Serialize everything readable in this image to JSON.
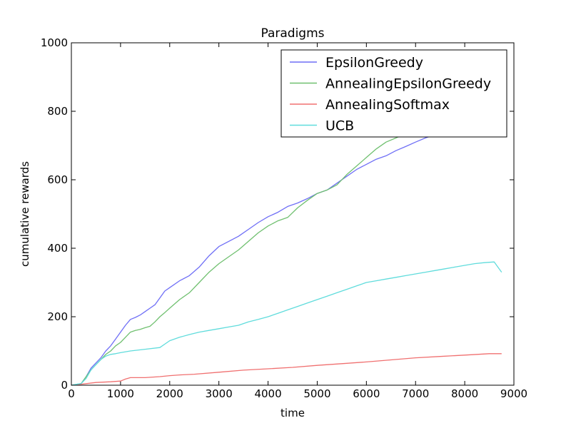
{
  "chart_data": {
    "type": "line",
    "title": "Paradigms",
    "xlabel": "time",
    "ylabel": "cumulative rewards",
    "xlim": [
      0,
      9000
    ],
    "ylim": [
      0,
      1000
    ],
    "xticks": [
      0,
      1000,
      2000,
      3000,
      4000,
      5000,
      6000,
      7000,
      8000,
      9000
    ],
    "yticks": [
      0,
      200,
      400,
      600,
      800,
      1000
    ],
    "grid": false,
    "legend_position": "top-right",
    "series": [
      {
        "name": "EpsilonGreedy",
        "color": "#6f6ff6",
        "x": [
          0,
          200,
          300,
          400,
          500,
          600,
          700,
          800,
          900,
          1000,
          1100,
          1200,
          1300,
          1400,
          1500,
          1600,
          1700,
          1800,
          1900,
          2000,
          2200,
          2400,
          2600,
          2800,
          3000,
          3200,
          3400,
          3600,
          3800,
          4000,
          4200,
          4400,
          4600,
          4800,
          5000,
          5200,
          5400,
          5600,
          5800,
          6000,
          6200,
          6400,
          6600,
          6800,
          7000,
          7200,
          7400,
          7600
        ],
        "y": [
          0,
          5,
          25,
          50,
          65,
          80,
          100,
          115,
          135,
          155,
          175,
          192,
          198,
          205,
          215,
          225,
          235,
          255,
          275,
          285,
          305,
          320,
          345,
          378,
          405,
          420,
          435,
          455,
          475,
          492,
          505,
          522,
          532,
          545,
          560,
          570,
          590,
          610,
          630,
          645,
          660,
          670,
          685,
          697,
          710,
          722,
          732,
          738
        ]
      },
      {
        "name": "AnnealingEpsilonGreedy",
        "color": "#70c070",
        "x": [
          0,
          200,
          300,
          400,
          500,
          600,
          700,
          800,
          900,
          1000,
          1100,
          1200,
          1300,
          1400,
          1500,
          1600,
          1700,
          1800,
          1900,
          2000,
          2200,
          2400,
          2600,
          2800,
          3000,
          3200,
          3400,
          3600,
          3800,
          4000,
          4200,
          4400,
          4600,
          4800,
          5000,
          5200,
          5400,
          5600,
          5800,
          6000,
          6200,
          6400,
          6600,
          6800
        ],
        "y": [
          0,
          5,
          25,
          45,
          60,
          75,
          90,
          100,
          115,
          125,
          140,
          155,
          160,
          163,
          168,
          172,
          185,
          200,
          212,
          225,
          250,
          270,
          300,
          330,
          355,
          375,
          395,
          420,
          445,
          465,
          480,
          490,
          518,
          540,
          560,
          570,
          585,
          615,
          640,
          665,
          690,
          710,
          722,
          735
        ]
      },
      {
        "name": "AnnealingSoftmax",
        "color": "#f07070",
        "x": [
          0,
          200,
          500,
          800,
          1000,
          1100,
          1200,
          1500,
          1800,
          2000,
          2200,
          2500,
          3000,
          3500,
          4000,
          4500,
          5000,
          5500,
          6000,
          6500,
          7000,
          7500,
          8000,
          8500,
          8750
        ],
        "y": [
          0,
          3,
          8,
          10,
          12,
          18,
          22,
          22,
          25,
          28,
          30,
          32,
          38,
          44,
          48,
          52,
          58,
          63,
          68,
          74,
          80,
          84,
          88,
          92,
          92
        ]
      },
      {
        "name": "UCB",
        "color": "#60dcdc",
        "x": [
          0,
          200,
          300,
          400,
          500,
          600,
          700,
          800,
          900,
          1000,
          1200,
          1500,
          1800,
          1900,
          2000,
          2200,
          2400,
          2600,
          2800,
          3000,
          3200,
          3400,
          3500,
          3600,
          3800,
          4000,
          4200,
          4400,
          4600,
          4800,
          5000,
          5200,
          5400,
          5600,
          5800,
          6000,
          6200,
          6400,
          6600,
          6800,
          7000,
          7200,
          7400,
          7600,
          7800,
          8000,
          8200,
          8400,
          8600,
          8750
        ],
        "y": [
          0,
          5,
          20,
          45,
          60,
          75,
          85,
          90,
          92,
          95,
          100,
          105,
          110,
          120,
          130,
          140,
          148,
          155,
          160,
          165,
          170,
          175,
          180,
          185,
          192,
          200,
          210,
          220,
          230,
          240,
          250,
          260,
          270,
          280,
          290,
          300,
          305,
          310,
          315,
          320,
          325,
          330,
          335,
          340,
          345,
          350,
          355,
          358,
          360,
          330
        ]
      }
    ]
  }
}
